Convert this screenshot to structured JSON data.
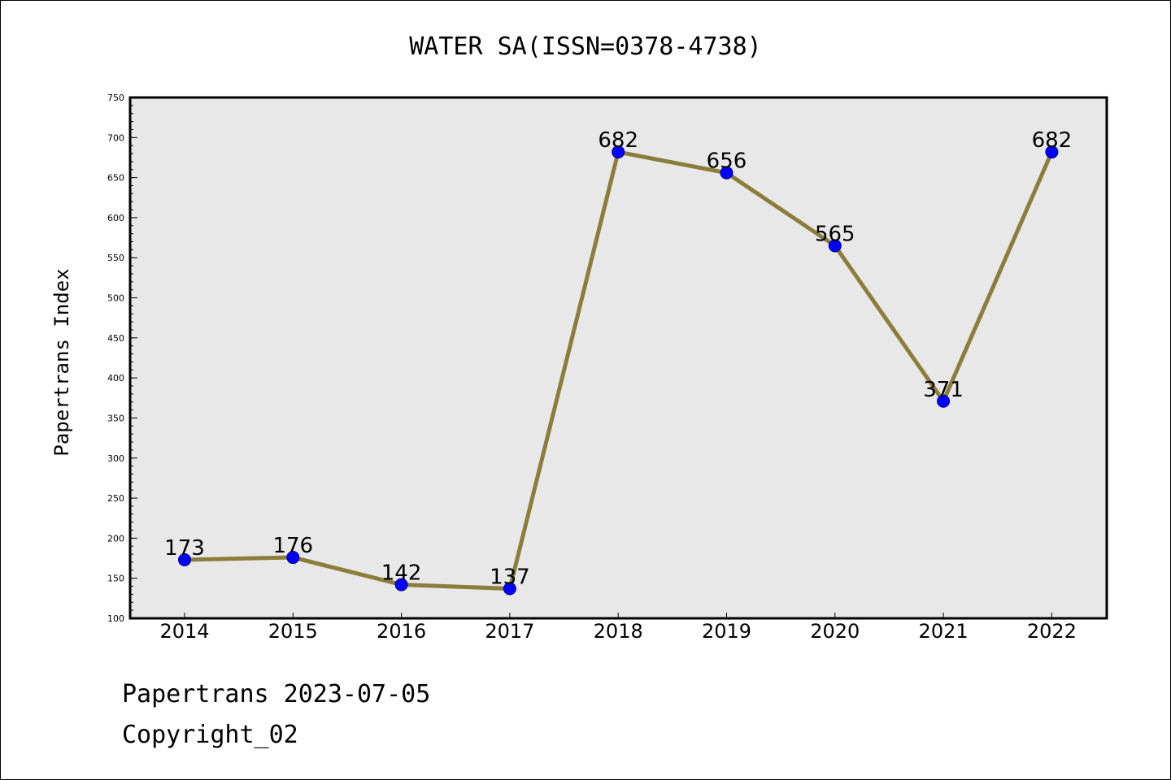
{
  "chart_data": {
    "type": "line",
    "title": "WATER SA(ISSN=0378-4738)",
    "xlabel": "",
    "ylabel": "Papertrans Index",
    "categories": [
      "2014",
      "2015",
      "2016",
      "2017",
      "2018",
      "2019",
      "2020",
      "2021",
      "2022"
    ],
    "series": [
      {
        "values": [
          173,
          176,
          142,
          137,
          682,
          656,
          565,
          371,
          682
        ]
      }
    ],
    "ylim": [
      100,
      750
    ],
    "yticks": [
      100,
      150,
      200,
      250,
      300,
      350,
      400,
      450,
      500,
      550,
      600,
      650,
      700,
      750
    ],
    "grid": false,
    "line_color": "#8b7d3a",
    "marker_color": "#0000ff",
    "plot_background": "#e8e8e8"
  },
  "footer": {
    "line1": "Papertrans 2023-07-05",
    "line2": "Copyright_02"
  }
}
